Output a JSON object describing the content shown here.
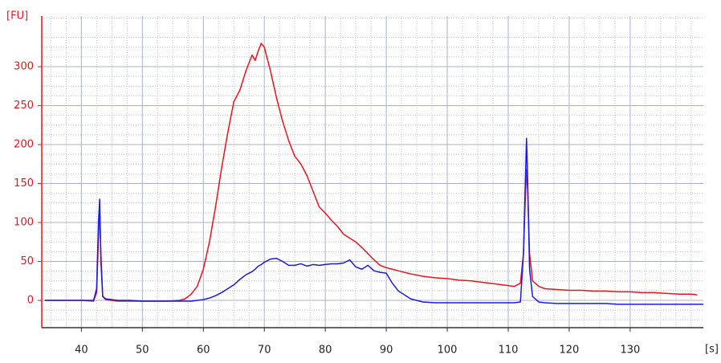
{
  "chart_data": {
    "type": "line",
    "y_label": "[FU]",
    "x_label": "[s]",
    "x": [
      34,
      36,
      38,
      40,
      42,
      42.5,
      42.8,
      43,
      43.2,
      43.5,
      44,
      46,
      48,
      50,
      52,
      54,
      56,
      57,
      58,
      59,
      60,
      61,
      62,
      63,
      64,
      65,
      66,
      67,
      68,
      68.5,
      69,
      69.5,
      70,
      71,
      72,
      73,
      74,
      75,
      76,
      77,
      78,
      79,
      80,
      81,
      82,
      83,
      84,
      85,
      86,
      87,
      88,
      89,
      90,
      91,
      92,
      94,
      96,
      98,
      100,
      102,
      104,
      106,
      108,
      110,
      111,
      112,
      112.5,
      112.8,
      113,
      113.2,
      113.5,
      114,
      115,
      116,
      118,
      120,
      122,
      124,
      126,
      128,
      130,
      132,
      134,
      136,
      138,
      140,
      141,
      142
    ],
    "series": [
      {
        "color": "#e8141c",
        "values": [
          0,
          0,
          0,
          0,
          -1,
          10,
          80,
          118,
          60,
          5,
          1,
          -1,
          -1,
          -1,
          -1,
          -1,
          0,
          2,
          8,
          18,
          40,
          75,
          120,
          170,
          215,
          255,
          270,
          295,
          315,
          308,
          320,
          330,
          325,
          295,
          260,
          230,
          205,
          185,
          175,
          160,
          140,
          120,
          112,
          103,
          95,
          85,
          80,
          75,
          68,
          60,
          52,
          45,
          42,
          40,
          38,
          34,
          31,
          29,
          28,
          26,
          25,
          23,
          21,
          19,
          18,
          22,
          60,
          130,
          168,
          140,
          60,
          25,
          18,
          15,
          14,
          13,
          13,
          12,
          12,
          11,
          11,
          10,
          10,
          9,
          8,
          8,
          7,
          null
        ]
      },
      {
        "color": "#1a1ae0",
        "values": [
          0,
          0,
          0,
          0,
          0,
          15,
          100,
          130,
          50,
          5,
          2,
          0,
          0,
          -1,
          -1,
          -1,
          -1,
          -1,
          -1,
          0,
          1,
          3,
          6,
          10,
          15,
          20,
          27,
          33,
          37,
          40,
          44,
          46,
          49,
          53,
          54,
          50,
          45,
          45,
          47,
          44,
          46,
          45,
          46,
          47,
          47,
          48,
          52,
          43,
          40,
          45,
          38,
          36,
          35,
          22,
          12,
          2,
          -2,
          -3,
          -3,
          -3,
          -3,
          -3,
          -3,
          -3,
          -3,
          -2,
          60,
          150,
          208,
          150,
          40,
          5,
          -2,
          -3,
          -4,
          -4,
          -4,
          -4,
          -4,
          -5,
          -5,
          -5,
          -5,
          -5,
          -5,
          -5,
          -5,
          -5
        ]
      }
    ],
    "xlim": [
      33.5,
      142
    ],
    "ylim": [
      -35,
      365
    ],
    "xticks": [
      40,
      50,
      60,
      70,
      80,
      90,
      100,
      110,
      120,
      130
    ],
    "yticks": [
      0,
      50,
      100,
      150,
      200,
      250,
      300
    ],
    "xminorticks": [
      35,
      37.5,
      42.5,
      45,
      47.5,
      52.5,
      55,
      57.5,
      62.5,
      65,
      67.5,
      72.5,
      75,
      77.5,
      82.5,
      85,
      87.5,
      92.5,
      95,
      97.5,
      102.5,
      105,
      107.5,
      112.5,
      115,
      117.5,
      122.5,
      125,
      127.5,
      132.5,
      135,
      137.5,
      140
    ],
    "yminorticks": [
      -25,
      -12.5,
      12.5,
      25,
      37.5,
      62.5,
      75,
      87.5,
      112.5,
      125,
      137.5,
      162.5,
      175,
      187.5,
      212.5,
      225,
      237.5,
      262.5,
      275,
      287.5,
      312.5,
      325,
      337.5,
      362.5
    ],
    "grid": true
  }
}
